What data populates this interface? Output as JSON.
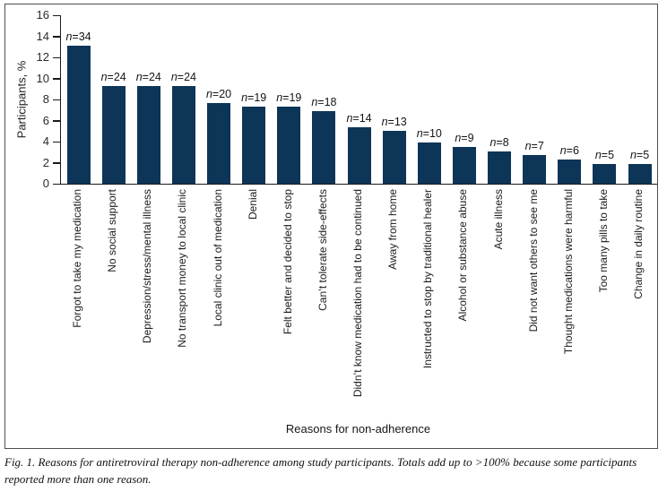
{
  "figure": {
    "caption": "Fig. 1. Reasons for antiretroviral therapy non-adherence among study participants. Totals add up to >100% because some participants reported more than one reason."
  },
  "chart_data": {
    "type": "bar",
    "title": "",
    "xlabel": "Reasons for non-adherence",
    "ylabel": "Participants, %",
    "ylim": [
      0,
      16
    ],
    "yticks": [
      0,
      2,
      4,
      6,
      8,
      10,
      12,
      14,
      16
    ],
    "grid": false,
    "legend_position": "none",
    "bar_color": "#0d3557",
    "categories": [
      "Forgot to take my medication",
      "No social support",
      "Depression/stress/mental illness",
      "No transport money to local clinic",
      "Local clinic out of medication",
      "Denial",
      "Felt better and decided to stop",
      "Can’t tolerate side-effects",
      "Didn’t know medication had to be continued",
      "Away from home",
      "Instructed to stop by traditional healer",
      "Alcohol or substance abuse",
      "Acute illness",
      "Did not want others to see me",
      "Thought medications were harmful",
      "Too many pills to take",
      "Change in daily routine"
    ],
    "n_counts": [
      34,
      24,
      24,
      24,
      20,
      19,
      19,
      18,
      14,
      13,
      10,
      9,
      8,
      7,
      6,
      5,
      5
    ],
    "bar_labels": [
      "n=34",
      "n=24",
      "n=24",
      "n=24",
      "n=20",
      "n=19",
      "n=19",
      "n=18",
      "n=14",
      "n=13",
      "n=10",
      "n=9",
      "n=8",
      "n=7",
      "n=6",
      "n=5",
      "n=5"
    ],
    "values": [
      13.1,
      9.3,
      9.3,
      9.3,
      7.7,
      7.3,
      7.3,
      6.9,
      5.4,
      5.0,
      3.9,
      3.5,
      3.1,
      2.7,
      2.3,
      1.9,
      1.9
    ]
  }
}
